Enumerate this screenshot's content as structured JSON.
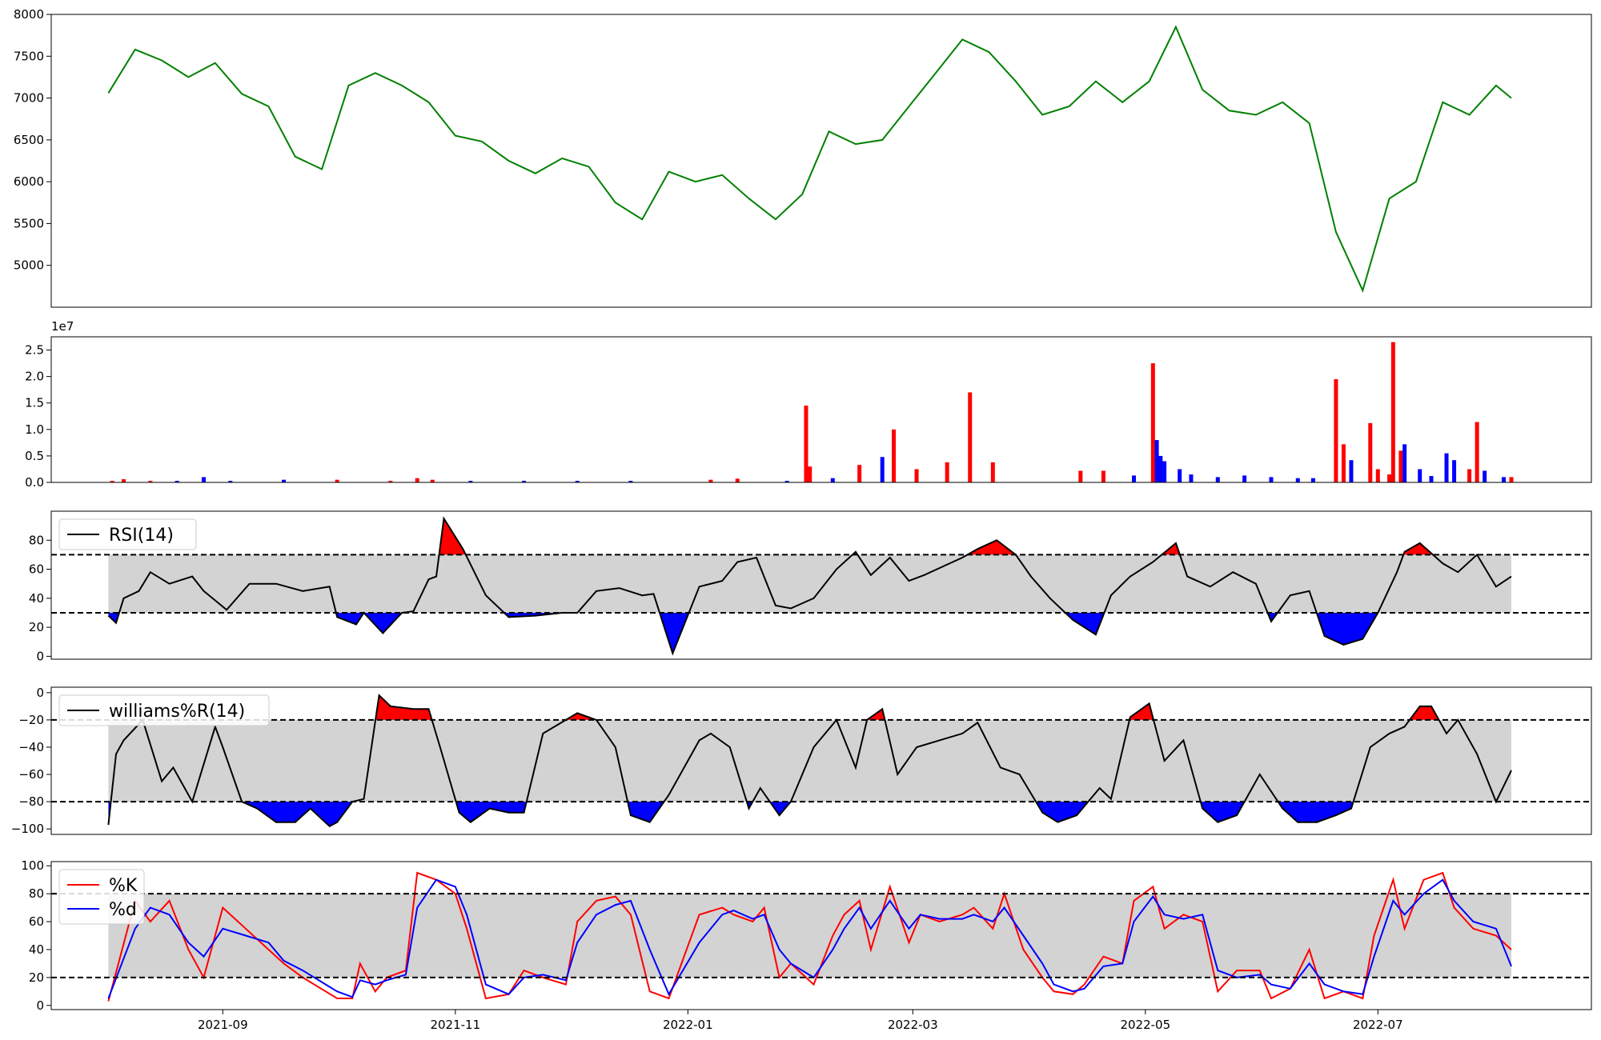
{
  "chart_data": [
    {
      "type": "line",
      "name_key": "price",
      "ylim": [
        4500,
        8000
      ],
      "yticks": [
        5000,
        5500,
        6000,
        6500,
        7000,
        7500,
        8000
      ],
      "color": "#008000",
      "dates": [
        "2021-08-02",
        "2021-08-09",
        "2021-08-16",
        "2021-08-23",
        "2021-08-30",
        "2021-09-06",
        "2021-09-13",
        "2021-09-20",
        "2021-09-27",
        "2021-10-04",
        "2021-10-11",
        "2021-10-18",
        "2021-10-25",
        "2021-11-01",
        "2021-11-08",
        "2021-11-15",
        "2021-11-22",
        "2021-11-29",
        "2021-12-06",
        "2021-12-13",
        "2021-12-20",
        "2021-12-27",
        "2022-01-03",
        "2022-01-10",
        "2022-01-17",
        "2022-01-24",
        "2022-01-31",
        "2022-02-07",
        "2022-02-14",
        "2022-02-21",
        "2022-02-28",
        "2022-03-07",
        "2022-03-14",
        "2022-03-21",
        "2022-03-28",
        "2022-04-04",
        "2022-04-11",
        "2022-04-18",
        "2022-04-25",
        "2022-05-02",
        "2022-05-09",
        "2022-05-16",
        "2022-05-23",
        "2022-05-30",
        "2022-06-06",
        "2022-06-13",
        "2022-06-20",
        "2022-06-27",
        "2022-07-04",
        "2022-07-11",
        "2022-07-18",
        "2022-07-25",
        "2022-08-01",
        "2022-08-05"
      ],
      "values": [
        7060,
        7580,
        7450,
        7250,
        7420,
        7050,
        6900,
        6300,
        6150,
        7150,
        7300,
        7150,
        6950,
        6550,
        6480,
        6250,
        6100,
        6280,
        6180,
        5750,
        5550,
        6120,
        6000,
        6080,
        5800,
        5550,
        5850,
        6600,
        6450,
        6500,
        6900,
        7300,
        7700,
        7550,
        7200,
        6800,
        6900,
        7200,
        6950,
        7200,
        7850,
        7100,
        6850,
        6800,
        6950,
        6700,
        5400,
        4700,
        5800,
        6000,
        6950,
        6800,
        7150,
        7000
      ]
    },
    {
      "type": "bar",
      "name_key": "volume",
      "ylim": [
        0,
        2.75
      ],
      "yticks": [
        0.0,
        0.5,
        1.0,
        1.5,
        2.0,
        2.5
      ],
      "ytick_labels": [
        "0.0",
        "0.5",
        "1.0",
        "1.5",
        "2.0",
        "2.5"
      ],
      "offset_label": "1e7",
      "colors": [
        "#ff0000",
        "#0000ff"
      ],
      "dates": [
        "2021-08-03",
        "2021-08-06",
        "2021-08-13",
        "2021-08-20",
        "2021-08-27",
        "2021-09-03",
        "2021-09-17",
        "2021-10-01",
        "2021-10-15",
        "2021-10-22",
        "2021-10-26",
        "2021-11-05",
        "2021-11-19",
        "2021-12-03",
        "2021-12-17",
        "2022-01-07",
        "2022-01-14",
        "2022-01-27",
        "2022-02-01",
        "2022-02-02",
        "2022-02-08",
        "2022-02-15",
        "2022-02-21",
        "2022-02-24",
        "2022-03-02",
        "2022-03-10",
        "2022-03-16",
        "2022-03-22",
        "2022-04-14",
        "2022-04-20",
        "2022-04-28",
        "2022-05-03",
        "2022-05-04",
        "2022-05-05",
        "2022-05-06",
        "2022-05-10",
        "2022-05-13",
        "2022-05-20",
        "2022-05-27",
        "2022-06-03",
        "2022-06-10",
        "2022-06-14",
        "2022-06-20",
        "2022-06-22",
        "2022-06-24",
        "2022-06-29",
        "2022-07-01",
        "2022-07-04",
        "2022-07-05",
        "2022-07-07",
        "2022-07-08",
        "2022-07-12",
        "2022-07-15",
        "2022-07-19",
        "2022-07-21",
        "2022-07-25",
        "2022-07-27",
        "2022-07-29",
        "2022-08-03",
        "2022-08-05"
      ],
      "values": [
        0.03,
        0.06,
        0.03,
        0.03,
        0.1,
        0.03,
        0.05,
        0.05,
        0.03,
        0.08,
        0.05,
        0.03,
        0.03,
        0.03,
        0.03,
        0.05,
        0.07,
        0.03,
        1.45,
        0.3,
        0.08,
        0.33,
        0.48,
        1.0,
        0.25,
        0.38,
        1.7,
        0.38,
        0.22,
        0.22,
        0.13,
        2.25,
        0.8,
        0.5,
        0.4,
        0.25,
        0.15,
        0.1,
        0.13,
        0.1,
        0.08,
        0.08,
        1.95,
        0.72,
        0.42,
        1.12,
        0.25,
        0.15,
        2.65,
        0.6,
        0.72,
        0.25,
        0.12,
        0.55,
        0.42,
        0.25,
        1.14,
        0.22,
        0.1,
        0.1
      ],
      "directions": [
        "up",
        "up",
        "up",
        "dn",
        "dn",
        "dn",
        "dn",
        "up",
        "up",
        "up",
        "up",
        "dn",
        "dn",
        "dn",
        "dn",
        "up",
        "up",
        "dn",
        "up",
        "up",
        "dn",
        "up",
        "dn",
        "up",
        "up",
        "up",
        "up",
        "up",
        "up",
        "up",
        "dn",
        "up",
        "dn",
        "dn",
        "dn",
        "dn",
        "dn",
        "dn",
        "dn",
        "dn",
        "dn",
        "dn",
        "up",
        "up",
        "dn",
        "up",
        "up",
        "up",
        "up",
        "up",
        "dn",
        "dn",
        "dn",
        "dn",
        "dn",
        "up",
        "up",
        "dn",
        "dn",
        "up"
      ]
    },
    {
      "type": "line",
      "name_key": "rsi",
      "ylim": [
        -2,
        100
      ],
      "yticks": [
        0,
        20,
        40,
        60,
        80
      ],
      "upper": 70,
      "lower": 30,
      "legend": "RSI(14)",
      "dates": [
        "2021-08-02",
        "2021-08-04",
        "2021-08-06",
        "2021-08-10",
        "2021-08-13",
        "2021-08-18",
        "2021-08-24",
        "2021-08-27",
        "2021-09-02",
        "2021-09-08",
        "2021-09-15",
        "2021-09-22",
        "2021-09-29",
        "2021-10-01",
        "2021-10-06",
        "2021-10-08",
        "2021-10-13",
        "2021-10-18",
        "2021-10-21",
        "2021-10-25",
        "2021-10-27",
        "2021-10-29",
        "2021-11-03",
        "2021-11-09",
        "2021-11-15",
        "2021-11-22",
        "2021-11-29",
        "2021-12-03",
        "2021-12-08",
        "2021-12-14",
        "2021-12-20",
        "2021-12-23",
        "2021-12-28",
        "2022-01-04",
        "2022-01-10",
        "2022-01-14",
        "2022-01-19",
        "2022-01-24",
        "2022-01-28",
        "2022-02-03",
        "2022-02-09",
        "2022-02-14",
        "2022-02-18",
        "2022-02-23",
        "2022-02-28",
        "2022-03-04",
        "2022-03-09",
        "2022-03-14",
        "2022-03-18",
        "2022-03-23",
        "2022-03-28",
        "2022-04-01",
        "2022-04-06",
        "2022-04-12",
        "2022-04-18",
        "2022-04-22",
        "2022-04-27",
        "2022-05-03",
        "2022-05-09",
        "2022-05-12",
        "2022-05-18",
        "2022-05-24",
        "2022-05-30",
        "2022-06-03",
        "2022-06-08",
        "2022-06-13",
        "2022-06-17",
        "2022-06-22",
        "2022-06-27",
        "2022-07-01",
        "2022-07-06",
        "2022-07-08",
        "2022-07-12",
        "2022-07-18",
        "2022-07-22",
        "2022-07-27",
        "2022-08-01",
        "2022-08-05"
      ],
      "values": [
        28,
        23,
        40,
        45,
        58,
        50,
        55,
        45,
        32,
        50,
        50,
        45,
        48,
        27,
        22,
        30,
        16,
        30,
        31,
        53,
        55,
        95,
        74,
        42,
        27,
        28,
        30,
        30,
        45,
        47,
        42,
        43,
        2,
        48,
        52,
        65,
        68,
        35,
        33,
        40,
        60,
        72,
        56,
        68,
        52,
        56,
        62,
        68,
        74,
        80,
        70,
        55,
        40,
        25,
        15,
        42,
        55,
        65,
        78,
        55,
        48,
        58,
        50,
        24,
        42,
        45,
        14,
        8,
        12,
        30,
        58,
        72,
        78,
        64,
        58,
        70,
        48,
        55
      ]
    },
    {
      "type": "line",
      "name_key": "williams",
      "ylim": [
        -104,
        4
      ],
      "yticks": [
        0,
        -20,
        -40,
        -60,
        -80,
        -100
      ],
      "ytick_labels": [
        "0",
        "−20",
        "−40",
        "−60",
        "−80",
        "−100"
      ],
      "upper": -20,
      "lower": -80,
      "legend": "williams%R(14)",
      "dates": [
        "2021-08-02",
        "2021-08-04",
        "2021-08-06",
        "2021-08-11",
        "2021-08-16",
        "2021-08-19",
        "2021-08-24",
        "2021-08-30",
        "2021-09-01",
        "2021-09-06",
        "2021-09-10",
        "2021-09-15",
        "2021-09-20",
        "2021-09-24",
        "2021-09-29",
        "2021-10-01",
        "2021-10-05",
        "2021-10-08",
        "2021-10-12",
        "2021-10-15",
        "2021-10-21",
        "2021-10-25",
        "2021-10-28",
        "2021-11-02",
        "2021-11-05",
        "2021-11-10",
        "2021-11-15",
        "2021-11-19",
        "2021-11-24",
        "2021-11-30",
        "2021-12-03",
        "2021-12-08",
        "2021-12-13",
        "2021-12-17",
        "2021-12-22",
        "2021-12-27",
        "2022-01-04",
        "2022-01-07",
        "2022-01-12",
        "2022-01-17",
        "2022-01-20",
        "2022-01-25",
        "2022-01-28",
        "2022-02-03",
        "2022-02-09",
        "2022-02-14",
        "2022-02-17",
        "2022-02-21",
        "2022-02-25",
        "2022-03-02",
        "2022-03-08",
        "2022-03-14",
        "2022-03-18",
        "2022-03-24",
        "2022-03-29",
        "2022-04-04",
        "2022-04-08",
        "2022-04-13",
        "2022-04-19",
        "2022-04-22",
        "2022-04-27",
        "2022-05-02",
        "2022-05-06",
        "2022-05-11",
        "2022-05-16",
        "2022-05-20",
        "2022-05-25",
        "2022-05-31",
        "2022-06-06",
        "2022-06-10",
        "2022-06-15",
        "2022-06-20",
        "2022-06-24",
        "2022-06-29",
        "2022-07-04",
        "2022-07-08",
        "2022-07-12",
        "2022-07-15",
        "2022-07-19",
        "2022-07-22",
        "2022-07-27",
        "2022-08-01",
        "2022-08-05"
      ],
      "values": [
        -97,
        -45,
        -35,
        -20,
        -65,
        -55,
        -80,
        -25,
        -40,
        -80,
        -85,
        -95,
        -95,
        -85,
        -98,
        -95,
        -80,
        -78,
        -2,
        -10,
        -12,
        -12,
        -40,
        -88,
        -95,
        -85,
        -88,
        -88,
        -30,
        -20,
        -15,
        -20,
        -40,
        -90,
        -95,
        -75,
        -35,
        -30,
        -40,
        -85,
        -70,
        -90,
        -80,
        -40,
        -20,
        -55,
        -20,
        -12,
        -60,
        -40,
        -35,
        -30,
        -22,
        -55,
        -60,
        -88,
        -95,
        -90,
        -70,
        -78,
        -18,
        -8,
        -50,
        -35,
        -85,
        -95,
        -90,
        -60,
        -85,
        -95,
        -95,
        -90,
        -85,
        -40,
        -30,
        -25,
        -10,
        -10,
        -30,
        -20,
        -45,
        -80,
        -57
      ]
    },
    {
      "type": "line",
      "name_key": "stochastic",
      "ylim": [
        -3,
        103
      ],
      "yticks": [
        0,
        20,
        40,
        60,
        80,
        100
      ],
      "upper": 80,
      "lower": 20,
      "series": [
        {
          "name": "%K",
          "color": "#ff0000",
          "values": [
            3,
            75,
            60,
            75,
            40,
            20,
            70,
            55,
            40,
            30,
            20,
            10,
            5,
            5,
            30,
            10,
            20,
            25,
            95,
            90,
            80,
            55,
            5,
            8,
            25,
            20,
            15,
            60,
            75,
            78,
            65,
            10,
            5,
            65,
            70,
            65,
            60,
            70,
            20,
            30,
            15,
            50,
            65,
            75,
            40,
            85,
            45,
            65,
            60,
            65,
            70,
            55,
            80,
            40,
            20,
            10,
            8,
            15,
            35,
            30,
            75,
            85,
            55,
            65,
            60,
            10,
            25,
            25,
            5,
            12,
            40,
            5,
            10,
            5,
            50,
            90,
            55,
            90,
            95,
            70,
            55,
            50,
            40
          ]
        },
        {
          "name": "%d",
          "color": "#0000ff",
          "values": [
            5,
            55,
            70,
            65,
            45,
            35,
            55,
            50,
            45,
            32,
            25,
            15,
            10,
            6,
            18,
            15,
            18,
            22,
            70,
            90,
            85,
            65,
            15,
            8,
            20,
            22,
            18,
            45,
            65,
            72,
            75,
            40,
            8,
            45,
            65,
            68,
            62,
            65,
            40,
            30,
            20,
            40,
            55,
            70,
            55,
            75,
            55,
            65,
            62,
            62,
            65,
            60,
            70,
            50,
            30,
            15,
            10,
            12,
            28,
            30,
            60,
            78,
            65,
            62,
            65,
            25,
            20,
            22,
            15,
            12,
            30,
            15,
            10,
            8,
            35,
            75,
            65,
            80,
            90,
            75,
            60,
            55,
            28
          ]
        }
      ],
      "dates": [
        "2021-08-02",
        "2021-08-09",
        "2021-08-13",
        "2021-08-18",
        "2021-08-23",
        "2021-08-27",
        "2021-09-01",
        "2021-09-07",
        "2021-09-13",
        "2021-09-17",
        "2021-09-22",
        "2021-09-28",
        "2021-10-01",
        "2021-10-05",
        "2021-10-07",
        "2021-10-11",
        "2021-10-14",
        "2021-10-19",
        "2021-10-22",
        "2021-10-27",
        "2021-11-01",
        "2021-11-04",
        "2021-11-09",
        "2021-11-15",
        "2021-11-19",
        "2021-11-24",
        "2021-11-30",
        "2021-12-03",
        "2021-12-08",
        "2021-12-13",
        "2021-12-17",
        "2021-12-22",
        "2021-12-27",
        "2022-01-04",
        "2022-01-10",
        "2022-01-13",
        "2022-01-18",
        "2022-01-21",
        "2022-01-25",
        "2022-01-28",
        "2022-02-03",
        "2022-02-08",
        "2022-02-11",
        "2022-02-15",
        "2022-02-18",
        "2022-02-23",
        "2022-02-28",
        "2022-03-03",
        "2022-03-08",
        "2022-03-14",
        "2022-03-17",
        "2022-03-22",
        "2022-03-25",
        "2022-03-30",
        "2022-04-04",
        "2022-04-07",
        "2022-04-12",
        "2022-04-15",
        "2022-04-20",
        "2022-04-25",
        "2022-04-28",
        "2022-05-03",
        "2022-05-06",
        "2022-05-11",
        "2022-05-16",
        "2022-05-20",
        "2022-05-25",
        "2022-05-31",
        "2022-06-03",
        "2022-06-08",
        "2022-06-13",
        "2022-06-17",
        "2022-06-22",
        "2022-06-27",
        "2022-06-30",
        "2022-07-05",
        "2022-07-08",
        "2022-07-13",
        "2022-07-18",
        "2022-07-21",
        "2022-07-26",
        "2022-08-01",
        "2022-08-05"
      ],
      "legend_labels": [
        "%K",
        "%d"
      ]
    }
  ],
  "xaxis": {
    "range": [
      "2021-07-18",
      "2022-08-26"
    ],
    "ticks": [
      {
        "date": "2021-09-01",
        "label": "2021-09"
      },
      {
        "date": "2021-11-01",
        "label": "2021-11"
      },
      {
        "date": "2022-01-01",
        "label": "2022-01"
      },
      {
        "date": "2022-03-01",
        "label": "2022-03"
      },
      {
        "date": "2022-05-01",
        "label": "2022-05"
      },
      {
        "date": "2022-07-01",
        "label": "2022-07"
      }
    ]
  },
  "colors": {
    "band": "#d3d3d3",
    "over": "#ff0000",
    "under": "#0000ff",
    "line": "#000000"
  }
}
